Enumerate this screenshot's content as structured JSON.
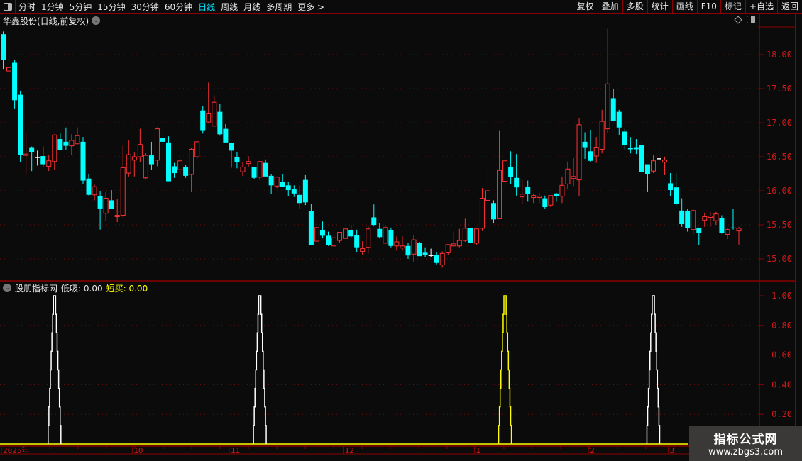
{
  "toolbar": {
    "periods": [
      "分时",
      "1分钟",
      "5分钟",
      "15分钟",
      "30分钟",
      "60分钟",
      "日线",
      "周线",
      "月线",
      "多周期",
      "更多 >"
    ],
    "active_period": "日线",
    "buttons": [
      "复权",
      "叠加",
      "多股",
      "统计",
      "画线",
      "F10",
      "标记",
      "+自选",
      "返回"
    ]
  },
  "chart": {
    "title": "华鑫股份(日线,前复权)",
    "price_axis": {
      "ticks": [
        "18.00",
        "17.50",
        "17.00",
        "16.50",
        "16.00",
        "15.50",
        "15.00"
      ],
      "range": [
        14.75,
        18.6
      ]
    },
    "colors": {
      "up": "#ff3232",
      "down": "#00ffff",
      "flat": "#ffffff",
      "grid": "#8b0000"
    },
    "candles_ohlc": [
      [
        18.3,
        18.34,
        17.79,
        17.92
      ],
      [
        17.76,
        18.14,
        17.74,
        17.81
      ],
      [
        17.88,
        17.92,
        17.21,
        17.33
      ],
      [
        17.41,
        17.47,
        16.42,
        16.53
      ],
      [
        16.52,
        16.84,
        16.25,
        16.54
      ],
      [
        16.64,
        16.65,
        16.29,
        16.57
      ],
      [
        16.49,
        16.59,
        16.37,
        16.49
      ],
      [
        16.51,
        16.65,
        16.35,
        16.39
      ],
      [
        16.36,
        16.53,
        16.29,
        16.44
      ],
      [
        16.43,
        16.83,
        16.31,
        16.82
      ],
      [
        16.76,
        16.84,
        16.59,
        16.6
      ],
      [
        16.72,
        16.93,
        16.6,
        16.66
      ],
      [
        16.66,
        16.83,
        16.52,
        16.74
      ],
      [
        16.69,
        16.93,
        16.69,
        16.81
      ],
      [
        16.72,
        16.79,
        16.1,
        16.15
      ],
      [
        16.18,
        16.24,
        15.93,
        15.94
      ],
      [
        15.94,
        16.09,
        15.86,
        16.06
      ],
      [
        15.92,
        15.99,
        15.43,
        15.74
      ],
      [
        15.67,
        15.98,
        15.56,
        15.89
      ],
      [
        15.86,
        16.01,
        15.73,
        15.73
      ],
      [
        15.62,
        15.88,
        15.54,
        15.64
      ],
      [
        15.64,
        16.66,
        15.61,
        16.34
      ],
      [
        16.26,
        16.75,
        16.21,
        16.53
      ],
      [
        16.45,
        16.56,
        16.21,
        16.5
      ],
      [
        16.5,
        16.91,
        16.42,
        16.68
      ],
      [
        16.19,
        16.55,
        16.17,
        16.52
      ],
      [
        16.52,
        16.72,
        16.31,
        16.39
      ],
      [
        16.45,
        16.93,
        16.36,
        16.91
      ],
      [
        16.78,
        16.91,
        16.58,
        16.72
      ],
      [
        16.71,
        16.8,
        16.14,
        16.14
      ],
      [
        16.36,
        16.41,
        16.19,
        16.26
      ],
      [
        16.31,
        16.48,
        16.19,
        16.44
      ],
      [
        16.35,
        16.38,
        16.19,
        16.22
      ],
      [
        16.24,
        16.63,
        15.98,
        16.61
      ],
      [
        16.5,
        16.72,
        16.47,
        16.72
      ],
      [
        17.18,
        17.25,
        16.84,
        16.88
      ],
      [
        17.01,
        17.59,
        17.0,
        17.13
      ],
      [
        16.95,
        17.4,
        16.95,
        17.3
      ],
      [
        17.16,
        17.28,
        16.81,
        16.83
      ],
      [
        16.91,
        16.98,
        16.7,
        16.71
      ],
      [
        16.7,
        16.71,
        16.34,
        16.59
      ],
      [
        16.5,
        16.57,
        16.33,
        16.42
      ],
      [
        16.28,
        16.42,
        16.22,
        16.35
      ],
      [
        16.4,
        16.51,
        16.35,
        16.43
      ],
      [
        16.35,
        16.35,
        16.17,
        16.19
      ],
      [
        16.2,
        16.43,
        16.16,
        16.43
      ],
      [
        16.41,
        16.46,
        16.21,
        16.21
      ],
      [
        16.22,
        16.25,
        15.95,
        16.08
      ],
      [
        16.07,
        16.21,
        16.04,
        16.2
      ],
      [
        16.13,
        16.24,
        16.06,
        16.06
      ],
      [
        16.08,
        16.13,
        15.92,
        16.01
      ],
      [
        16.02,
        16.08,
        15.91,
        15.96
      ],
      [
        15.94,
        16.08,
        15.74,
        15.82
      ],
      [
        16.16,
        16.23,
        15.79,
        15.83
      ],
      [
        15.7,
        15.81,
        15.2,
        15.2
      ],
      [
        15.26,
        15.63,
        15.25,
        15.46
      ],
      [
        15.42,
        15.55,
        15.31,
        15.34
      ],
      [
        15.34,
        15.4,
        15.19,
        15.2
      ],
      [
        15.19,
        15.43,
        15.18,
        15.31
      ],
      [
        15.27,
        15.39,
        15.24,
        15.39
      ],
      [
        15.3,
        15.44,
        15.3,
        15.44
      ],
      [
        15.42,
        15.5,
        15.31,
        15.33
      ],
      [
        15.35,
        15.43,
        15.1,
        15.17
      ],
      [
        15.11,
        15.26,
        15.06,
        15.15
      ],
      [
        15.17,
        15.49,
        15.08,
        15.44
      ],
      [
        15.61,
        15.8,
        15.49,
        15.5
      ],
      [
        15.44,
        15.53,
        15.3,
        15.32
      ],
      [
        15.23,
        15.5,
        15.23,
        15.46
      ],
      [
        15.42,
        15.46,
        15.17,
        15.19
      ],
      [
        15.19,
        15.33,
        15.12,
        15.25
      ],
      [
        15.16,
        15.33,
        15.12,
        15.19
      ],
      [
        15.19,
        15.23,
        15.0,
        15.05
      ],
      [
        15.07,
        15.35,
        14.95,
        15.28
      ],
      [
        15.24,
        15.25,
        15.04,
        15.04
      ],
      [
        15.09,
        15.17,
        15.03,
        15.06
      ],
      [
        15.05,
        15.15,
        15.03,
        15.05
      ],
      [
        15.06,
        15.1,
        14.92,
        14.94
      ],
      [
        14.91,
        15.11,
        14.87,
        15.08
      ],
      [
        15.09,
        15.21,
        15.06,
        15.21
      ],
      [
        15.19,
        15.39,
        15.18,
        15.22
      ],
      [
        15.19,
        15.44,
        15.17,
        15.27
      ],
      [
        15.27,
        15.59,
        15.25,
        15.45
      ],
      [
        15.45,
        15.46,
        15.24,
        15.24
      ],
      [
        15.23,
        15.44,
        15.21,
        15.44
      ],
      [
        15.45,
        16.04,
        15.41,
        15.89
      ],
      [
        15.86,
        16.38,
        15.77,
        16.0
      ],
      [
        15.82,
        15.86,
        15.52,
        15.58
      ],
      [
        15.59,
        16.88,
        15.59,
        16.3
      ],
      [
        16.14,
        16.44,
        16.08,
        16.44
      ],
      [
        16.35,
        16.58,
        16.1,
        16.2
      ],
      [
        16.19,
        16.54,
        15.93,
        16.05
      ],
      [
        15.91,
        16.16,
        15.8,
        15.95
      ],
      [
        16.06,
        16.15,
        15.84,
        15.95
      ],
      [
        15.9,
        15.96,
        15.82,
        15.93
      ],
      [
        15.9,
        15.97,
        15.82,
        15.92
      ],
      [
        15.89,
        15.93,
        15.73,
        15.76
      ],
      [
        15.79,
        15.93,
        15.76,
        15.93
      ],
      [
        15.96,
        15.97,
        15.84,
        15.92
      ],
      [
        15.92,
        16.21,
        15.82,
        16.08
      ],
      [
        16.1,
        16.43,
        16.03,
        16.32
      ],
      [
        16.18,
        16.48,
        16.07,
        16.21
      ],
      [
        16.16,
        17.07,
        15.92,
        16.97
      ],
      [
        16.72,
        16.86,
        16.47,
        16.64
      ],
      [
        16.58,
        16.89,
        16.42,
        16.44
      ],
      [
        16.51,
        16.79,
        16.41,
        16.64
      ],
      [
        16.61,
        17.19,
        16.55,
        17.02
      ],
      [
        16.91,
        18.38,
        16.85,
        17.57
      ],
      [
        17.36,
        17.5,
        17.02,
        17.03
      ],
      [
        17.16,
        17.19,
        16.82,
        16.93
      ],
      [
        16.87,
        16.91,
        16.61,
        16.67
      ],
      [
        16.63,
        16.79,
        16.55,
        16.61
      ],
      [
        16.64,
        16.76,
        16.54,
        16.61
      ],
      [
        16.67,
        16.73,
        16.28,
        16.28
      ],
      [
        16.39,
        16.39,
        15.98,
        16.24
      ],
      [
        16.29,
        16.53,
        16.26,
        16.44
      ],
      [
        16.47,
        16.65,
        16.38,
        16.47
      ],
      [
        16.42,
        16.5,
        16.23,
        16.45
      ],
      [
        16.11,
        16.26,
        15.92,
        16.01
      ],
      [
        16.05,
        16.26,
        15.77,
        15.81
      ],
      [
        15.71,
        15.89,
        15.47,
        15.51
      ],
      [
        15.7,
        15.73,
        15.4,
        15.45
      ],
      [
        15.43,
        15.73,
        15.36,
        15.71
      ],
      [
        15.45,
        15.46,
        15.2,
        15.38
      ],
      [
        15.57,
        15.68,
        15.47,
        15.62
      ],
      [
        15.61,
        15.69,
        15.47,
        15.63
      ],
      [
        15.56,
        15.69,
        15.5,
        15.66
      ],
      [
        15.6,
        15.64,
        15.37,
        15.38
      ],
      [
        15.36,
        15.45,
        15.29,
        15.43
      ],
      [
        15.46,
        15.73,
        15.43,
        15.45
      ],
      [
        15.41,
        15.47,
        15.21,
        15.45
      ]
    ]
  },
  "indicator": {
    "name": "股朋指标网",
    "low_buy_label": "低吸:",
    "low_buy_value": "0.00",
    "short_buy_label": "短买:",
    "short_buy_value": "0.00",
    "axis_ticks": [
      "1.00",
      "0.80",
      "0.60",
      "0.40",
      "0.20"
    ],
    "range": [
      0,
      1
    ],
    "low_buy_signal_candles": [
      9,
      45,
      114
    ],
    "short_buy_signal_candles": [
      88
    ],
    "colors": {
      "low_buy": "#ffffff",
      "short_buy": "#ffff00"
    }
  },
  "date_axis": [
    {
      "label": "2025年",
      "candle": 0
    },
    {
      "label": "10",
      "candle": 23
    },
    {
      "label": "11",
      "candle": 40
    },
    {
      "label": "12",
      "candle": 60
    },
    {
      "label": "1",
      "candle": 83
    },
    {
      "label": "2",
      "candle": 103
    },
    {
      "label": "3",
      "candle": 117
    }
  ],
  "watermark": {
    "title": "指标公式网",
    "url": "www.zbgs3.com"
  }
}
